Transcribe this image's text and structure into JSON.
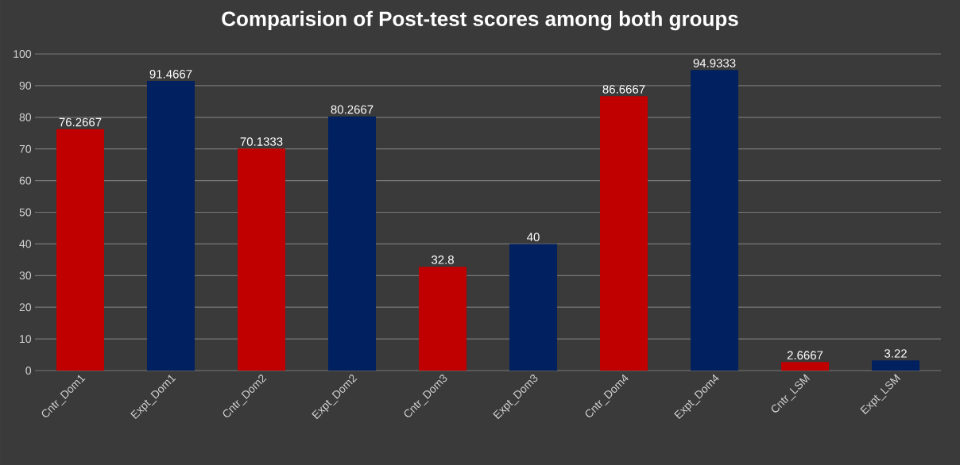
{
  "chart_data": {
    "type": "bar",
    "title": "Comparision of Post-test scores among both groups",
    "categories": [
      "Cntr_Dom1",
      "Expt_Dom1",
      "Cntr_Dom2",
      "Expt_Dom2",
      "Cntr_Dom3",
      "Expt_Dom3",
      "Cntr_Dom4",
      "Expt_Dom4",
      "Cntr_LSM",
      "Expt_LSM"
    ],
    "values": [
      76.2667,
      91.4667,
      70.1333,
      80.2667,
      32.8,
      40,
      86.6667,
      94.9333,
      2.6667,
      3.22
    ],
    "colors": [
      "#c00000",
      "#002060",
      "#c00000",
      "#002060",
      "#c00000",
      "#002060",
      "#c00000",
      "#002060",
      "#c00000",
      "#002060"
    ],
    "ylim": [
      0,
      100
    ],
    "yticks": [
      0,
      10,
      20,
      30,
      40,
      50,
      60,
      70,
      80,
      90,
      100
    ],
    "grid": "y",
    "data_labels": true
  }
}
